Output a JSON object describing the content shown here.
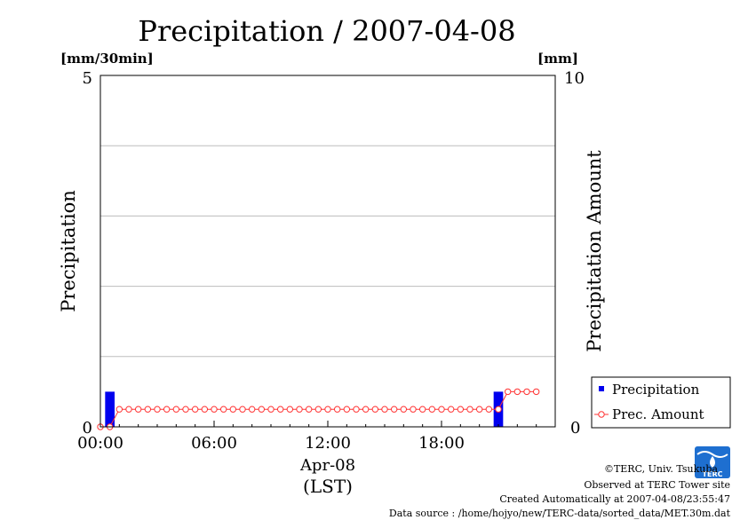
{
  "chart_data": {
    "type": "bar+line",
    "title": "Precipitation / 2007-04-08",
    "left_unit": "[mm/30min]",
    "right_unit": "[mm]",
    "ylabel": "Precipitation",
    "ylabel_right": "Precipitation Amount",
    "ylim": [
      0,
      5
    ],
    "ylim_right": [
      0,
      10
    ],
    "left_ticks": [
      "0",
      "5"
    ],
    "right_ticks": [
      "0",
      "10"
    ],
    "x_ticks": [
      "00:00",
      "06:00",
      "12:00",
      "18:00"
    ],
    "x_date": "Apr-08",
    "x_zone": "(LST)",
    "grid": true,
    "legend_position": "bottom-right",
    "series": [
      {
        "name": "Precipitation",
        "kind": "bar",
        "axis": "left",
        "color": "#0000ee",
        "points": [
          {
            "time": "00:30",
            "value": 0.5
          },
          {
            "time": "21:00",
            "value": 0.5
          }
        ]
      },
      {
        "name": "Prec. Amount",
        "kind": "line",
        "axis": "right",
        "color": "#ff3333",
        "time_step_hours": 0.5,
        "values": [
          0,
          0,
          0.5,
          0.5,
          0.5,
          0.5,
          0.5,
          0.5,
          0.5,
          0.5,
          0.5,
          0.5,
          0.5,
          0.5,
          0.5,
          0.5,
          0.5,
          0.5,
          0.5,
          0.5,
          0.5,
          0.5,
          0.5,
          0.5,
          0.5,
          0.5,
          0.5,
          0.5,
          0.5,
          0.5,
          0.5,
          0.5,
          0.5,
          0.5,
          0.5,
          0.5,
          0.5,
          0.5,
          0.5,
          0.5,
          0.5,
          0.5,
          0.5,
          1.0,
          1.0,
          1.0,
          1.0
        ]
      }
    ]
  },
  "footer": {
    "copyright": "©TERC, Univ. Tsukuba",
    "site": "Observed at TERC Tower site",
    "created": "Created Automatically at 2007-04-08/23:55:47",
    "source": "Data source : /home/hojyo/new/TERC-data/sorted_data/MET.30m.dat",
    "logo_text": "TERC"
  }
}
